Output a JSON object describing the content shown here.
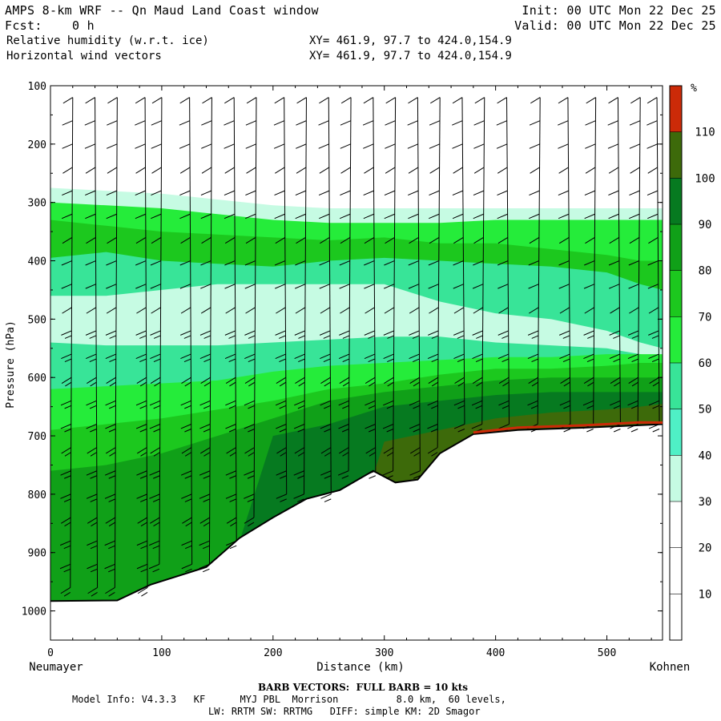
{
  "header": {
    "title": "AMPS 8-km WRF -- Qn Maud Land Coast window",
    "init": "Init: 00 UTC Mon 22 Dec 25",
    "fcst": "Fcst:    0 h",
    "valid": "Valid: 00 UTC Mon 22 Dec 25",
    "field1": "Relative humidity (w.r.t. ice)",
    "field1_xy": "XY= 461.9, 97.7 to 424.0,154.9",
    "field2": "Horizontal wind vectors",
    "field2_xy": "XY= 461.9, 97.7 to 424.0,154.9"
  },
  "chart_data": {
    "type": "heatmap",
    "title": "Relative humidity (w.r.t. ice) cross section with horizontal wind barbs",
    "xlabel": "Distance (km)",
    "ylabel": "Pressure (hPa)",
    "xlim": [
      0,
      550
    ],
    "ylim": [
      1050,
      100
    ],
    "xticks": [
      0,
      100,
      200,
      300,
      400,
      500
    ],
    "yticks": [
      100,
      200,
      300,
      400,
      500,
      600,
      700,
      800,
      900,
      1000
    ],
    "start_label": "Neumayer",
    "end_label": "Kohnen",
    "colorbar": {
      "unit": "%",
      "levels": [
        10,
        20,
        30,
        40,
        50,
        60,
        70,
        80,
        90,
        100,
        110
      ],
      "colors": [
        "#ffffff",
        "#ffffff",
        "#ffffff",
        "#c6fbe3",
        "#4ff0c6",
        "#38e498",
        "#25ec3a",
        "#1cc81e",
        "#10a018",
        "#067a20",
        "#3d6a0a",
        "#cc2a08"
      ]
    },
    "terrain": {
      "distance_km": [
        0,
        60,
        90,
        140,
        170,
        200,
        230,
        260,
        290,
        310,
        330,
        350,
        380,
        420,
        480,
        550
      ],
      "surface_pressure_hPa": [
        983,
        982,
        955,
        925,
        875,
        840,
        808,
        793,
        760,
        780,
        775,
        730,
        697,
        690,
        686,
        680
      ]
    },
    "rh_bands": [
      {
        "level": 35,
        "top_hPa": [
          275,
          280,
          285,
          295,
          305,
          310,
          310,
          310,
          310,
          310,
          310,
          310,
          310
        ],
        "distance_km": [
          0,
          50,
          100,
          150,
          200,
          250,
          300,
          350,
          400,
          450,
          500,
          530,
          550
        ]
      },
      {
        "level": 60,
        "top_hPa": [
          300,
          305,
          310,
          320,
          330,
          335,
          335,
          335,
          330,
          330,
          330,
          330,
          330
        ],
        "distance_km": [
          0,
          50,
          100,
          150,
          200,
          250,
          300,
          350,
          400,
          450,
          500,
          530,
          550
        ]
      },
      {
        "level": 75,
        "top_hPa": [
          330,
          340,
          350,
          355,
          360,
          365,
          360,
          370,
          370,
          380,
          390,
          400,
          400
        ],
        "distance_km": [
          0,
          50,
          100,
          150,
          200,
          250,
          300,
          350,
          400,
          450,
          500,
          530,
          550
        ]
      },
      {
        "level": 50,
        "top_hPa": [
          395,
          385,
          400,
          405,
          410,
          400,
          395,
          400,
          405,
          410,
          420,
          440,
          450
        ],
        "distance_km": [
          0,
          50,
          100,
          150,
          200,
          250,
          300,
          350,
          400,
          450,
          500,
          530,
          550
        ]
      },
      {
        "level": 35,
        "top_hPa": [
          460,
          460,
          450,
          440,
          440,
          440,
          440,
          470,
          490,
          500,
          520,
          540,
          550
        ],
        "distance_km": [
          0,
          50,
          100,
          150,
          200,
          250,
          300,
          350,
          400,
          450,
          500,
          530,
          550
        ]
      },
      {
        "level": 50,
        "top_hPa": [
          540,
          545,
          545,
          545,
          540,
          535,
          530,
          530,
          540,
          545,
          550,
          560,
          565
        ],
        "distance_km": [
          0,
          50,
          100,
          150,
          200,
          250,
          300,
          350,
          400,
          450,
          500,
          530,
          550
        ]
      },
      {
        "level": 65,
        "top_hPa": [
          620,
          615,
          610,
          605,
          590,
          580,
          575,
          570,
          565,
          565,
          560,
          560,
          560
        ],
        "distance_km": [
          0,
          50,
          100,
          150,
          200,
          250,
          300,
          350,
          400,
          450,
          500,
          530,
          550
        ]
      },
      {
        "level": 75,
        "top_hPa": [
          690,
          680,
          670,
          655,
          640,
          620,
          610,
          595,
          585,
          585,
          580,
          575,
          575
        ],
        "distance_km": [
          0,
          50,
          100,
          150,
          200,
          250,
          300,
          350,
          400,
          450,
          500,
          530,
          550
        ]
      },
      {
        "level": 85,
        "top_hPa": [
          760,
          750,
          730,
          700,
          670,
          640,
          625,
          615,
          605,
          600,
          600,
          600,
          600
        ],
        "distance_km": [
          0,
          50,
          100,
          150,
          200,
          250,
          300,
          350,
          400,
          450,
          500,
          530,
          550
        ]
      },
      {
        "level": 95,
        "top_hPa": [
          1000,
          1000,
          1000,
          1000,
          700,
          680,
          650,
          640,
          630,
          625,
          625,
          625,
          625
        ],
        "distance_km": [
          0,
          50,
          100,
          150,
          200,
          250,
          300,
          350,
          400,
          450,
          500,
          530,
          550
        ]
      },
      {
        "level": 105,
        "top_hPa": [
          1000,
          1000,
          1000,
          1000,
          1000,
          1000,
          710,
          690,
          670,
          660,
          655,
          650,
          645
        ],
        "distance_km": [
          0,
          50,
          100,
          150,
          200,
          250,
          300,
          350,
          400,
          450,
          500,
          530,
          550
        ]
      }
    ],
    "wind_columns_km": [
      20,
      40,
      60,
      85,
      100,
      125,
      145,
      165,
      185,
      210,
      230,
      250,
      270,
      290,
      310,
      330,
      350,
      370,
      390,
      410,
      440,
      465,
      490,
      510,
      530,
      545
    ],
    "wind_levels_hPa": [
      120,
      160,
      200,
      240,
      280,
      320,
      360,
      400,
      440,
      480,
      520,
      560,
      600,
      640,
      680,
      720,
      760,
      800,
      840,
      880,
      920,
      960,
      1000
    ],
    "wind_note": "BARB VECTORS:  FULL BARB = 10 kts"
  },
  "footer": {
    "barb_note": "BARB VECTORS:  FULL BARB = 10 kts",
    "model_info": "Model Info: V4.3.3   KF      MYJ PBL  Morrison          8.0 km,  60 levels,",
    "physics": "LW: RRTM SW: RRTMG   DIFF: simple KM: 2D Smagor"
  }
}
